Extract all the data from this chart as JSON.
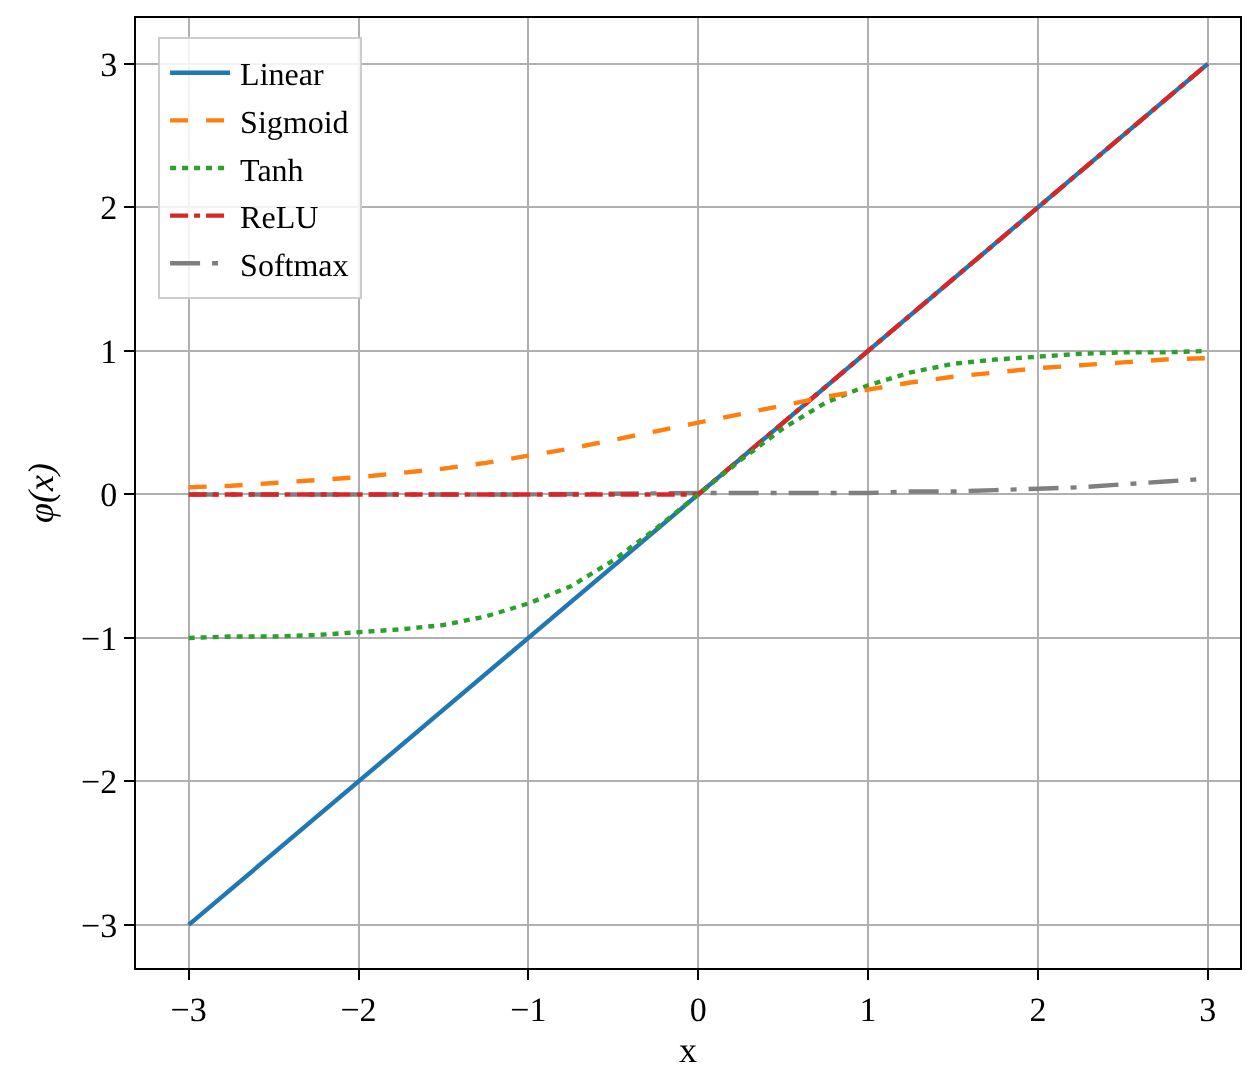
{
  "chart_data": {
    "type": "line",
    "xlabel": "x",
    "ylabel": "φ(x)",
    "xlim": [
      -3.31,
      3.19
    ],
    "ylim": [
      -3.3,
      3.32
    ],
    "xticks": [
      {
        "value": -3,
        "label": "−3"
      },
      {
        "value": -2,
        "label": "−2"
      },
      {
        "value": -1,
        "label": "−1"
      },
      0,
      1,
      2,
      3
    ],
    "yticks": [
      {
        "value": -3,
        "label": "−3"
      },
      {
        "value": -2,
        "label": "−2"
      },
      {
        "value": -1,
        "label": "−1"
      },
      0,
      1,
      2,
      3
    ],
    "grid": true,
    "legend": "top left",
    "marker": "none",
    "series": [
      {
        "name": "Linear",
        "color": "#1f77b4",
        "line_style": "solid",
        "x": [
          -3,
          3
        ],
        "values": [
          -3,
          3
        ]
      },
      {
        "name": "Sigmoid",
        "color": "#ff7f0e",
        "line_style": "dashed",
        "x": [
          -3,
          -2.75,
          -2.5,
          -2.25,
          -2,
          -1.75,
          -1.5,
          -1.25,
          -1,
          -0.75,
          -0.5,
          -0.25,
          0,
          0.25,
          0.5,
          0.75,
          1,
          1.25,
          1.5,
          1.75,
          2,
          2.25,
          2.5,
          2.75,
          3
        ],
        "values": [
          0.05,
          0.06,
          0.08,
          0.1,
          0.12,
          0.15,
          0.18,
          0.22,
          0.27,
          0.32,
          0.38,
          0.44,
          0.5,
          0.56,
          0.62,
          0.68,
          0.73,
          0.78,
          0.82,
          0.85,
          0.88,
          0.9,
          0.92,
          0.94,
          0.95
        ]
      },
      {
        "name": "Tanh",
        "color": "#2ca02c",
        "line_style": "dotted",
        "x": [
          -3,
          -2.75,
          -2.5,
          -2.25,
          -2,
          -1.75,
          -1.5,
          -1.25,
          -1,
          -0.75,
          -0.5,
          -0.25,
          0,
          0.25,
          0.5,
          0.75,
          1,
          1.25,
          1.5,
          1.75,
          2,
          2.25,
          2.5,
          2.75,
          3
        ],
        "values": [
          -1,
          -0.99,
          -0.99,
          -0.98,
          -0.96,
          -0.94,
          -0.91,
          -0.85,
          -0.76,
          -0.64,
          -0.46,
          -0.24,
          0,
          0.24,
          0.46,
          0.64,
          0.76,
          0.85,
          0.91,
          0.94,
          0.96,
          0.98,
          0.99,
          0.99,
          1
        ]
      },
      {
        "name": "ReLU",
        "color": "#d62728",
        "line_style": "dashdot",
        "x": [
          -3,
          0,
          3
        ],
        "values": [
          0,
          0,
          3
        ]
      },
      {
        "name": "Softmax",
        "color": "#7f7f7f",
        "line_style": "longdashdot",
        "x": [
          -3,
          -2,
          -1,
          0,
          0.5,
          1,
          1.25,
          1.5,
          1.75,
          2,
          2.25,
          2.5,
          2.75,
          3
        ],
        "values": [
          0,
          0,
          0,
          0.01,
          0.01,
          0.01,
          0.02,
          0.02,
          0.03,
          0.04,
          0.05,
          0.07,
          0.09,
          0.11
        ]
      }
    ]
  }
}
